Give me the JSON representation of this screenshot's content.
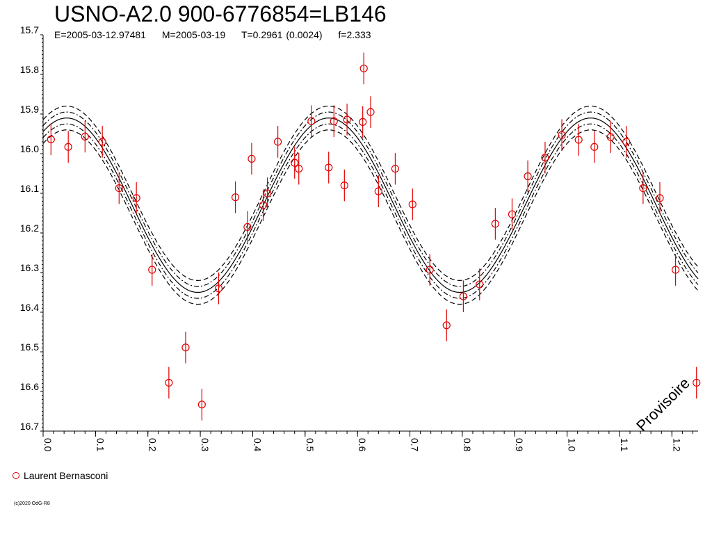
{
  "page": {
    "title": "USNO-A2.0 900-6776854=LB146",
    "subtitle": {
      "epoch": "E=2005-03-12.97481",
      "mean": "M=2005-03-19",
      "period": "T=0.2961 (0.0024)",
      "fraction": "f=2.333"
    },
    "watermark": "Provisoire",
    "copyright": "(c)2020 OdG-R8"
  },
  "chart_data": {
    "type": "scatter",
    "title": "USNO-A2.0 900-6776854=LB146",
    "xlabel": "",
    "ylabel": "",
    "xlim": [
      0.0,
      1.25
    ],
    "ylim": [
      15.7,
      16.7
    ],
    "y_inverted": true,
    "grid": false,
    "legend_position": "bottom-left",
    "x_ticks": [
      "0.0",
      "0.1",
      "0.2",
      "0.3",
      "0.4",
      "0.5",
      "0.6",
      "0.7",
      "0.8",
      "0.9",
      "1.0",
      "1.1",
      "1.2"
    ],
    "y_ticks": [
      "15.7",
      "15.8",
      "15.9",
      "16.0",
      "16.1",
      "16.2",
      "16.3",
      "16.4",
      "16.5",
      "16.6",
      "16.7"
    ],
    "series": [
      {
        "name": "Laurent Bernasconi",
        "color": "#e00000",
        "marker": "open-circle",
        "error_bar": 0.04,
        "points": [
          [
            0.015,
            15.964
          ],
          [
            0.048,
            15.983
          ],
          [
            0.08,
            15.957
          ],
          [
            0.113,
            15.97
          ],
          [
            0.145,
            16.087
          ],
          [
            0.178,
            16.112
          ],
          [
            0.208,
            16.293
          ],
          [
            0.24,
            16.578
          ],
          [
            0.272,
            16.489
          ],
          [
            0.303,
            16.633
          ],
          [
            0.335,
            16.34
          ],
          [
            0.367,
            16.11
          ],
          [
            0.39,
            16.185
          ],
          [
            0.398,
            16.013
          ],
          [
            0.42,
            16.13
          ],
          [
            0.428,
            16.1
          ],
          [
            0.448,
            15.97
          ],
          [
            0.48,
            16.023
          ],
          [
            0.488,
            16.038
          ],
          [
            0.512,
            15.918
          ],
          [
            0.545,
            16.035
          ],
          [
            0.555,
            15.918
          ],
          [
            0.575,
            16.08
          ],
          [
            0.58,
            15.914
          ],
          [
            0.61,
            15.92
          ],
          [
            0.612,
            15.785
          ],
          [
            0.625,
            15.895
          ],
          [
            0.64,
            16.095
          ],
          [
            0.672,
            16.038
          ],
          [
            0.705,
            16.128
          ],
          [
            0.738,
            16.293
          ],
          [
            0.77,
            16.433
          ],
          [
            0.802,
            16.36
          ],
          [
            0.833,
            16.33
          ],
          [
            0.863,
            16.177
          ],
          [
            0.895,
            16.153
          ],
          [
            0.925,
            16.057
          ],
          [
            0.958,
            16.01
          ],
          [
            0.99,
            15.953
          ],
          [
            1.022,
            15.965
          ],
          [
            1.052,
            15.983
          ],
          [
            1.083,
            15.958
          ],
          [
            1.113,
            15.97
          ],
          [
            1.145,
            16.087
          ],
          [
            1.177,
            16.112
          ],
          [
            1.207,
            16.293
          ],
          [
            1.247,
            16.578
          ]
        ]
      }
    ],
    "fit": {
      "type": "sinusoid",
      "mean": 16.13,
      "amplitude": 0.22,
      "max_brightness_phase": 0.545,
      "cycles_per_unit": 2.0,
      "band_offsets": [
        -0.03,
        -0.015,
        0.0,
        0.015,
        0.03
      ],
      "band_styles": [
        "dashed",
        "dashdot",
        "solid",
        "dashdot",
        "dashed"
      ]
    }
  }
}
